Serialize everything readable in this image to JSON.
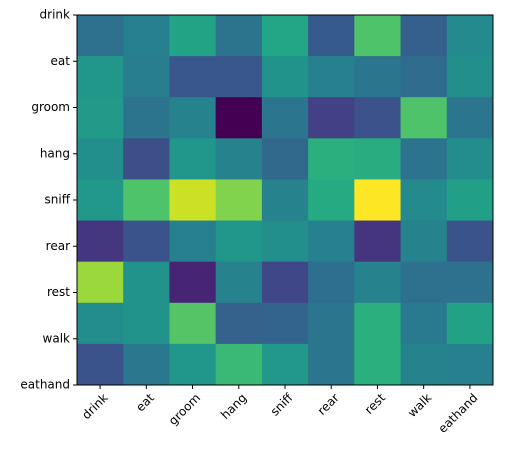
{
  "chart_data": {
    "type": "heatmap",
    "title": "",
    "xlabel": "",
    "ylabel": "",
    "x_categories": [
      "drink",
      "eat",
      "groom",
      "hang",
      "sniff",
      "rear",
      "rest",
      "walk",
      "eathand"
    ],
    "y_categories": [
      "drink",
      "eat",
      "groom",
      "hang",
      "sniff",
      "rear",
      "rest",
      "walk",
      "eathand"
    ],
    "colormap": "viridis",
    "colorbar": false,
    "grid": false,
    "x_tick_rotation_deg": 45,
    "values": [
      [
        0.37,
        0.43,
        0.58,
        0.38,
        0.59,
        0.28,
        0.72,
        0.3,
        0.47
      ],
      [
        0.52,
        0.42,
        0.27,
        0.27,
        0.51,
        0.43,
        0.39,
        0.35,
        0.49
      ],
      [
        0.54,
        0.38,
        0.44,
        0.0,
        0.39,
        0.19,
        0.25,
        0.72,
        0.39
      ],
      [
        0.49,
        0.24,
        0.52,
        0.44,
        0.34,
        0.63,
        0.62,
        0.38,
        0.48
      ],
      [
        0.53,
        0.72,
        0.92,
        0.81,
        0.44,
        0.61,
        1.0,
        0.47,
        0.56
      ],
      [
        0.16,
        0.26,
        0.43,
        0.52,
        0.49,
        0.43,
        0.15,
        0.44,
        0.26
      ],
      [
        0.85,
        0.51,
        0.1,
        0.44,
        0.21,
        0.36,
        0.44,
        0.37,
        0.37
      ],
      [
        0.48,
        0.51,
        0.73,
        0.31,
        0.32,
        0.39,
        0.63,
        0.41,
        0.57
      ],
      [
        0.26,
        0.4,
        0.52,
        0.67,
        0.53,
        0.39,
        0.63,
        0.44,
        0.43
      ]
    ]
  }
}
